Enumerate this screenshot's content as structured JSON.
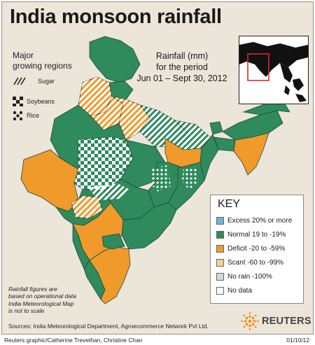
{
  "title": "India monsoon rainfall",
  "regions_legend": {
    "heading_line1": "Major",
    "heading_line2": "growing regions",
    "items": [
      {
        "label": "Sugar",
        "pattern": "diagonal-stripes"
      },
      {
        "label": "Soybeans",
        "pattern": "checkerboard"
      },
      {
        "label": "Rice",
        "pattern": "dots"
      }
    ]
  },
  "period": {
    "line1": "Rainfall (mm)",
    "line2": "for the period",
    "line3": "Jun 01 – Sept 30, 2012"
  },
  "key": {
    "title": "KEY",
    "items": [
      {
        "label": "Excess 20% or more",
        "color": "#6fb4d8"
      },
      {
        "label": "Normal 19 to  -19%",
        "color": "#2f8a5e"
      },
      {
        "label": "Deficit -20 to -59%",
        "color": "#f09a2c"
      },
      {
        "label": "Scant -60 to -99%",
        "color": "#f7d192"
      },
      {
        "label": "No rain -100%",
        "color": "#d8d8d8"
      },
      {
        "label": "No data",
        "color": "#ffffff"
      }
    ]
  },
  "note": {
    "line1": "Rainfall figures are",
    "line2": "based on operational data",
    "line3": "India Meteorological Map",
    "line4": "is not to scale"
  },
  "sources": "Sources: India Meteorological Department, Agroecommerce Network Pvt Ltd.",
  "logo": "REUTERS",
  "credit": "Reuters graphic/Catherine Trevethan, Christine Chan",
  "date": "01/10/12",
  "colors": {
    "background": "#ece5d9",
    "normal": "#2f8a5e",
    "deficit": "#f09a2c",
    "border": "#1f4a35"
  }
}
